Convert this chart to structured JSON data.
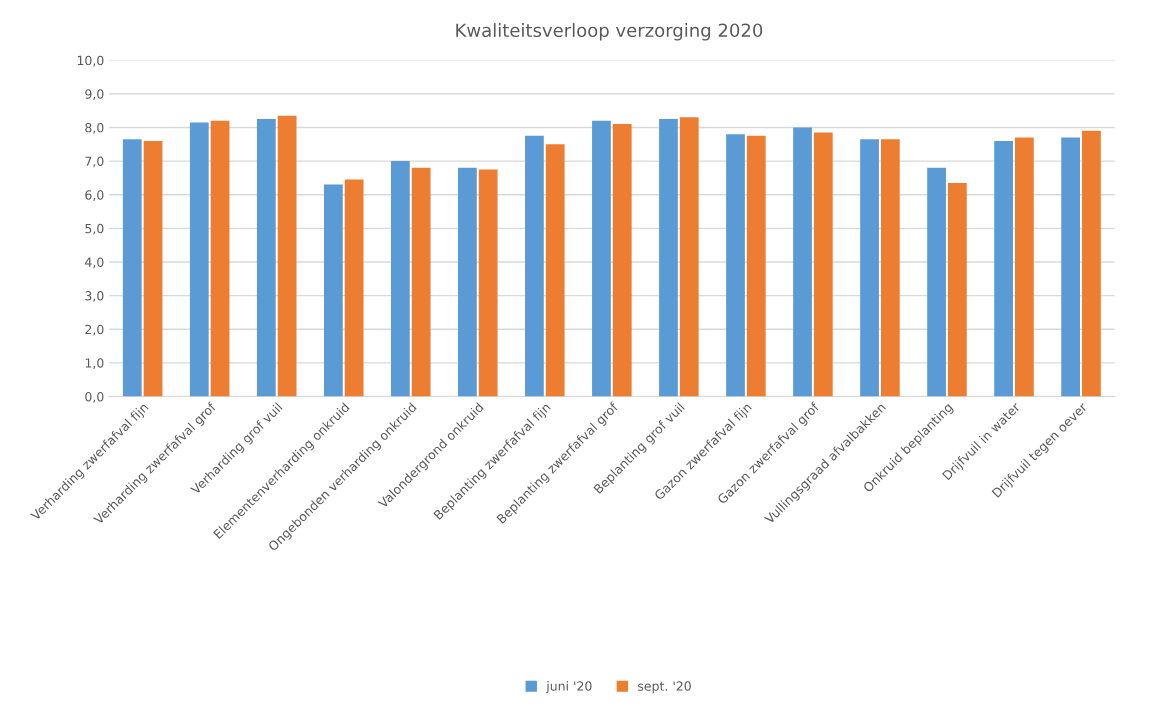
{
  "chart_data": {
    "type": "bar",
    "title": "Kwaliteitsverloop verzorging 2020",
    "categories": [
      "Verharding zwerfafval fijn",
      "Verharding zwerfafval grof",
      "Verharding grof vuil",
      "Elementenverharding onkruid",
      "Ongebonden verharding onkruid",
      "Valondergrond onkruid",
      "Beplanting zwerfafval fijn",
      "Beplanting zwerfafval grof",
      "Beplanting grof vuil",
      "Gazon zwerfafval fijn",
      "Gazon zwerfafval grof",
      "Vullingsgraad afvalbakken",
      "Onkruid beplanting",
      "Drijfvuil in water",
      "Drijfvuil tegen oever"
    ],
    "series": [
      {
        "name": "juni '20",
        "color": "#5b9bd5",
        "values": [
          7.65,
          8.15,
          8.25,
          6.3,
          7.0,
          6.8,
          7.75,
          8.2,
          8.25,
          7.8,
          8.0,
          7.65,
          6.8,
          7.6,
          7.7
        ]
      },
      {
        "name": "sept. '20",
        "color": "#ed7d31",
        "values": [
          7.6,
          8.2,
          8.35,
          6.45,
          6.8,
          6.75,
          7.5,
          8.1,
          8.3,
          7.75,
          7.85,
          7.65,
          6.35,
          7.7,
          7.9
        ]
      }
    ],
    "ylim": [
      0,
      10
    ],
    "yticks": [
      {
        "value": 0,
        "label": "0,0"
      },
      {
        "value": 1,
        "label": "1,0"
      },
      {
        "value": 2,
        "label": "2,0"
      },
      {
        "value": 3,
        "label": "3,0"
      },
      {
        "value": 4,
        "label": "4,0"
      },
      {
        "value": 5,
        "label": "5,0"
      },
      {
        "value": 6,
        "label": "6,0"
      },
      {
        "value": 7,
        "label": "7,0"
      },
      {
        "value": 8,
        "label": "8,0"
      },
      {
        "value": 9,
        "label": "9,0"
      },
      {
        "value": 10,
        "label": "10,0"
      }
    ],
    "grid": "y",
    "legend": "bottom"
  }
}
